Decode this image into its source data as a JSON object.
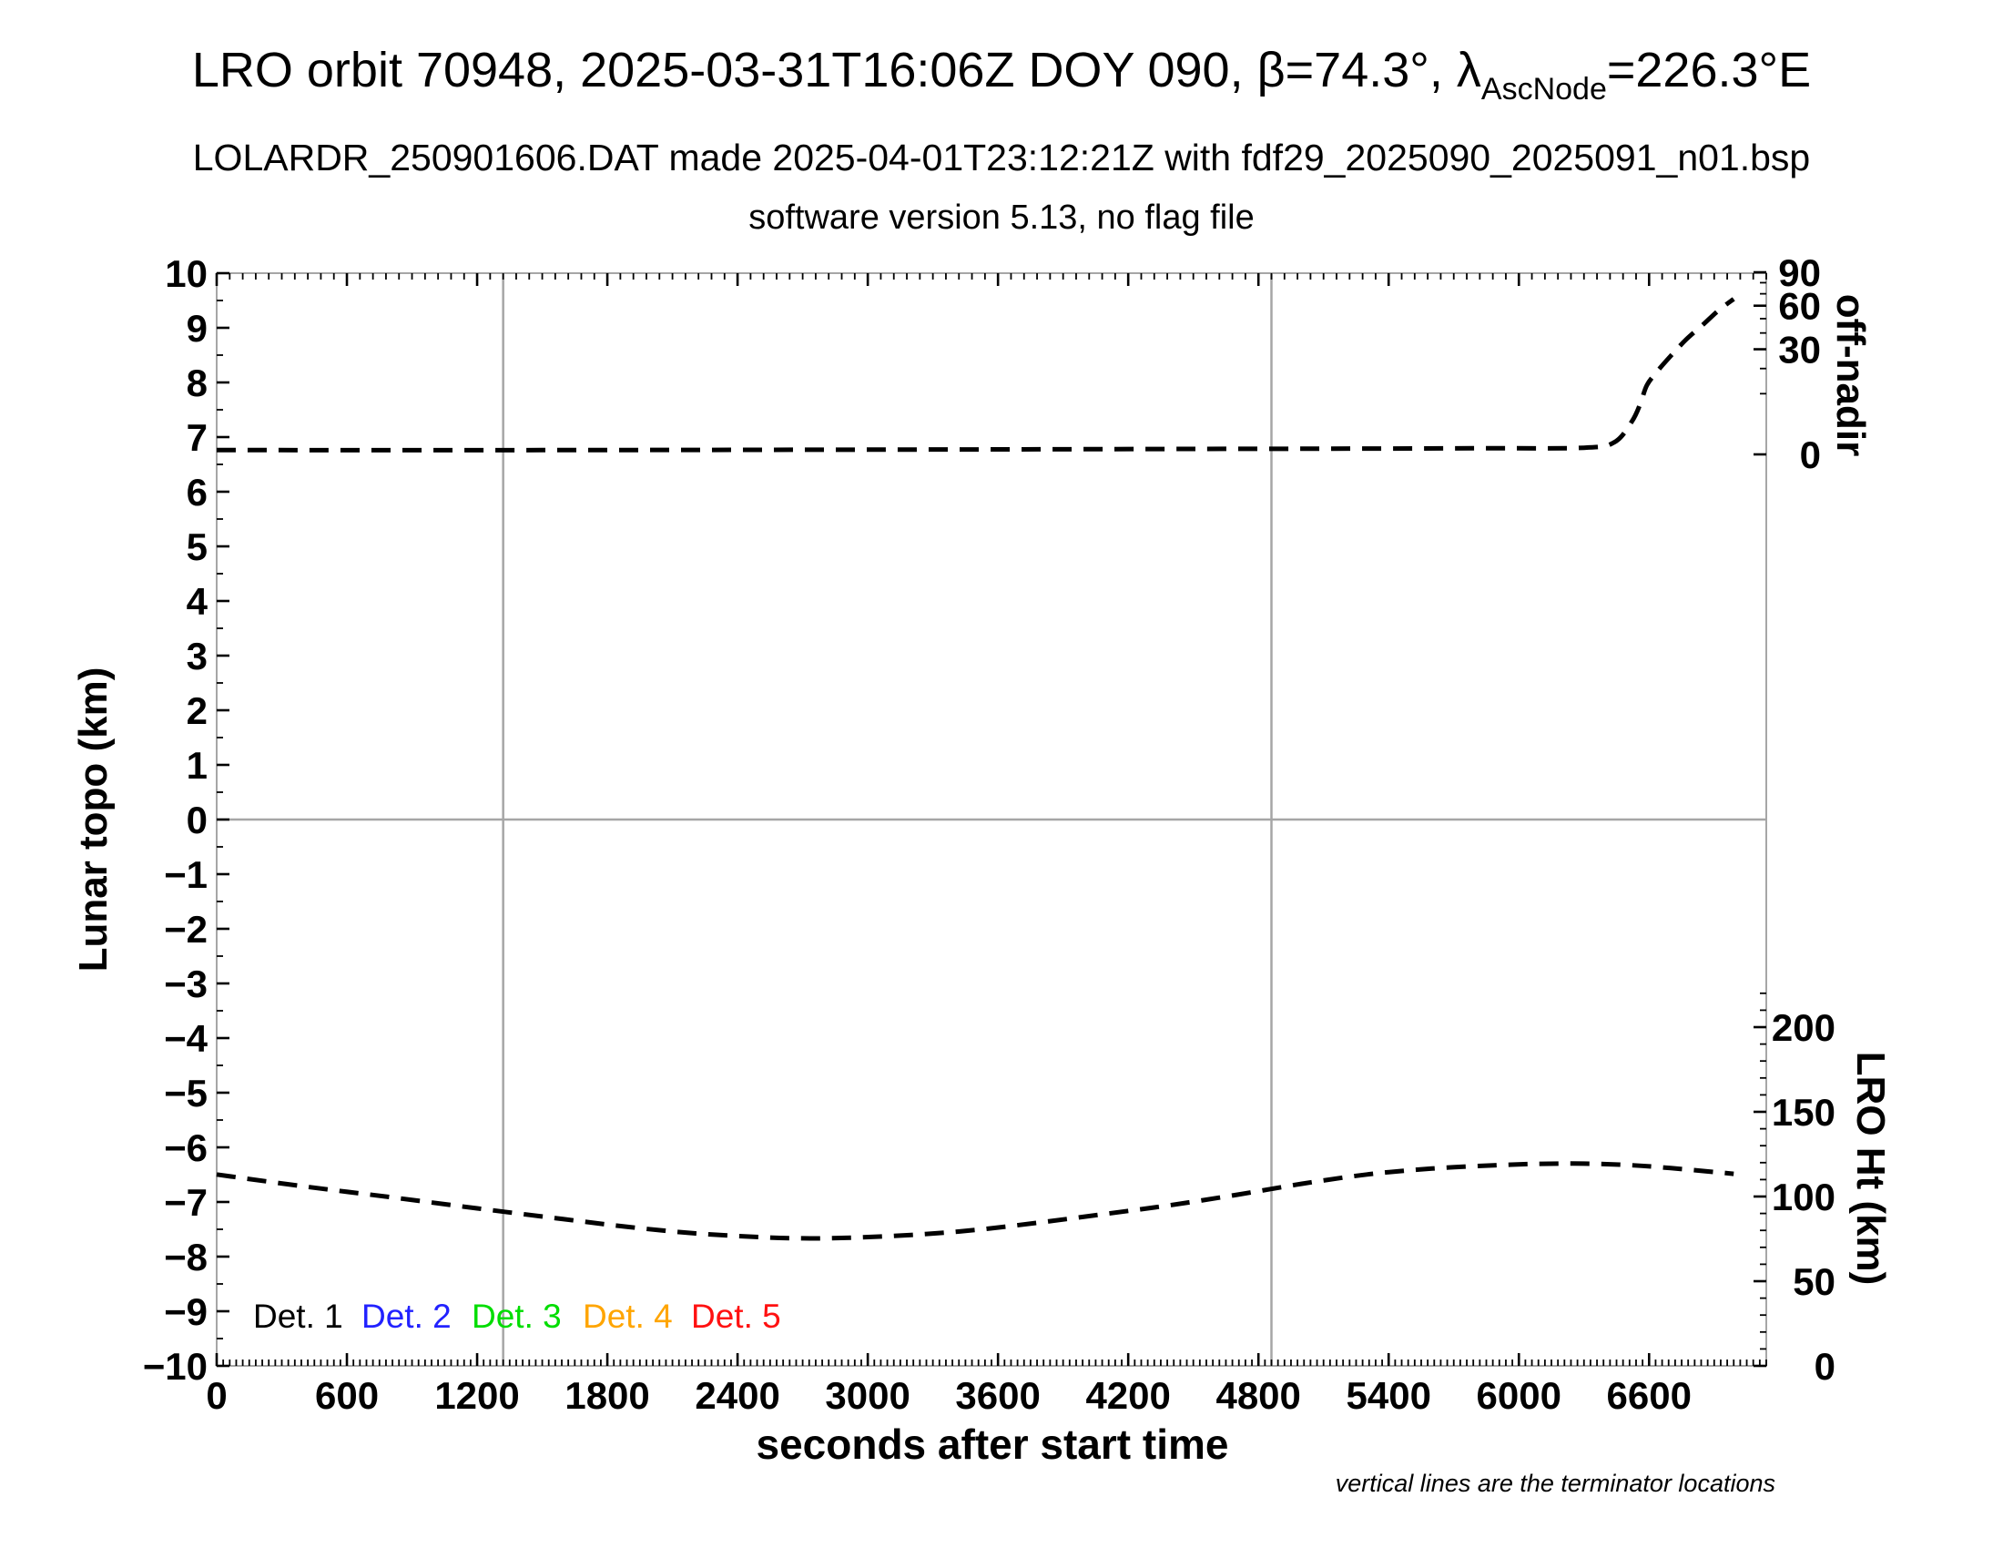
{
  "header": {
    "title_prefix": "LRO orbit 70948, 2025-03-31T16:06Z DOY 090, β=74.3°, λ",
    "title_sub": "AscNode",
    "title_suffix": "=226.3°E",
    "subtitle": "LOLARDR_250901606.DAT made 2025-04-01T23:12:21Z with fdf29_2025090_2025091_n01.bsp",
    "version_line": "software version 5.13, no flag file"
  },
  "chart_data": {
    "type": "line",
    "title": "LRO orbit 70948, 2025-03-31T16:06Z DOY 090, β=74.3°, λAscNode=226.3°E",
    "xlabel": "seconds after start time",
    "ylabel_left": "Lunar topo (km)",
    "ylabel_right_top": "off-nadir",
    "ylabel_right_bottom": "LRO Ht (km)",
    "footnote": "vertical lines are the terminator locations",
    "x_axis": {
      "min": 0,
      "max": 7140,
      "major_step": 600,
      "minor_step": 30,
      "tick_labels": [
        0,
        600,
        1200,
        1800,
        2400,
        3000,
        3600,
        4200,
        4800,
        5400,
        6000,
        6600
      ]
    },
    "y_axis_left": {
      "min": -10,
      "max": 10,
      "major_step": 1,
      "minor_step": 0.5,
      "zero_gridline": true,
      "tick_labels": [
        -10,
        -9,
        -8,
        -7,
        -6,
        -5,
        -4,
        -3,
        -2,
        -1,
        0,
        1,
        2,
        3,
        4,
        5,
        6,
        7,
        8,
        9,
        10
      ]
    },
    "y_axis_right_offnadir": {
      "scale": "sqrt",
      "units": "degrees",
      "minor_step": 10,
      "tick_labels": [
        0,
        30,
        60,
        90
      ]
    },
    "y_axis_right_ht": {
      "units": "km",
      "minor_step": 10,
      "max_tick": 220,
      "tick_labels": [
        0,
        50,
        100,
        150,
        200
      ]
    },
    "terminator_lines_s": [
      1320,
      4860
    ],
    "series": [
      {
        "name": "off-nadir angle (deg)",
        "axis": "offnadir",
        "color": "#000000",
        "dashed": true,
        "points": [
          [
            0,
            0.05
          ],
          [
            1500,
            0.05
          ],
          [
            3000,
            0.06
          ],
          [
            4500,
            0.08
          ],
          [
            5800,
            0.1
          ],
          [
            6300,
            0.12
          ],
          [
            6440,
            0.4
          ],
          [
            6520,
            2.9
          ],
          [
            6560,
            7
          ],
          [
            6590,
            13
          ],
          [
            6640,
            19
          ],
          [
            6705,
            27
          ],
          [
            6772,
            36
          ],
          [
            6851,
            46
          ],
          [
            6918,
            56
          ],
          [
            6990,
            65.5
          ]
        ]
      },
      {
        "name": "LRO height (km)",
        "axis": "ht",
        "color": "#000000",
        "dashed": true,
        "points": [
          [
            0,
            113
          ],
          [
            400,
            106
          ],
          [
            800,
            99.6
          ],
          [
            1200,
            93
          ],
          [
            1600,
            86.6
          ],
          [
            1900,
            82
          ],
          [
            2200,
            78.3
          ],
          [
            2500,
            76
          ],
          [
            2700,
            75.3
          ],
          [
            2900,
            75.6
          ],
          [
            3200,
            77.3
          ],
          [
            3500,
            80.3
          ],
          [
            3800,
            84.8
          ],
          [
            4100,
            89.8
          ],
          [
            4400,
            95
          ],
          [
            4700,
            101
          ],
          [
            5000,
            107.5
          ],
          [
            5300,
            113
          ],
          [
            5600,
            116.5
          ],
          [
            5900,
            118.5
          ],
          [
            6100,
            119.3
          ],
          [
            6300,
            119.4
          ],
          [
            6500,
            118.6
          ],
          [
            6700,
            116.8
          ],
          [
            6990,
            113.4
          ]
        ]
      }
    ],
    "legend": [
      {
        "label": "Det. 1",
        "color": "#000000"
      },
      {
        "label": "Det. 2",
        "color": "#2222ff"
      },
      {
        "label": "Det. 3",
        "color": "#00dd00"
      },
      {
        "label": "Det. 4",
        "color": "#ffa500"
      },
      {
        "label": "Det. 5",
        "color": "#ff1111"
      }
    ],
    "colors": {
      "frame": "#a6a6a6",
      "grid": "#a6a6a6",
      "curve": "#000000"
    }
  }
}
